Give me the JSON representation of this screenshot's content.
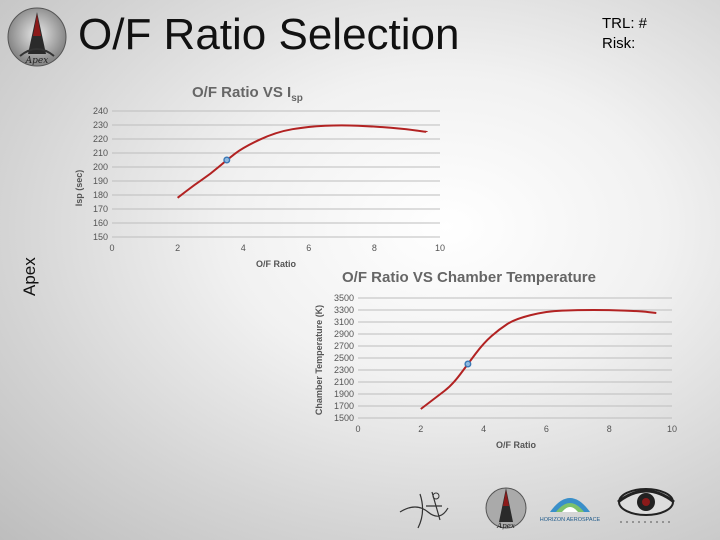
{
  "header": {
    "title": "O/F Ratio Selection",
    "trl_label": "TRL: #",
    "risk_label": "Risk:",
    "side_label": "Apex"
  },
  "logos": {
    "top_logo_text": "Apex",
    "bottom_logo_text": "Apex",
    "horizon_text": "HORIZON AEROSPACE"
  },
  "chart_data": [
    {
      "type": "line",
      "title": "O/F Ratio VS I",
      "title_sub": "sp",
      "xlabel": "O/F Ratio",
      "ylabel": "Isp (sec)",
      "xlim": [
        0,
        10
      ],
      "ylim": [
        150,
        240
      ],
      "xticks": [
        0,
        2,
        4,
        6,
        8,
        10
      ],
      "yticks": [
        150,
        160,
        170,
        180,
        190,
        200,
        210,
        220,
        230,
        240
      ],
      "grid": true,
      "series": [
        {
          "x": [
            2.0,
            2.5,
            3.0,
            3.5,
            4.0,
            5.0,
            6.0,
            7.0,
            8.0,
            9.0,
            9.6
          ],
          "y": [
            178,
            187,
            195,
            205,
            214,
            225,
            229,
            230,
            229,
            227,
            225
          ],
          "color": "#b22222"
        }
      ],
      "marker": {
        "x": 3.5,
        "y": 205,
        "color": "#3a78b5"
      }
    },
    {
      "type": "line",
      "title": "O/F Ratio VS Chamber Temperature",
      "xlabel": "O/F Ratio",
      "ylabel": "Chamber Temperature (K)",
      "xlim": [
        0,
        10
      ],
      "ylim": [
        1500,
        3500
      ],
      "xticks": [
        0,
        2,
        4,
        6,
        8,
        10
      ],
      "yticks": [
        1500,
        1700,
        1900,
        2100,
        2300,
        2500,
        2700,
        2900,
        3100,
        3300,
        3500
      ],
      "grid": true,
      "series": [
        {
          "x": [
            2.0,
            2.5,
            3.0,
            3.5,
            4.0,
            4.5,
            5.0,
            6.0,
            7.0,
            8.0,
            9.0,
            9.5
          ],
          "y": [
            1650,
            1850,
            2050,
            2400,
            2750,
            2980,
            3150,
            3280,
            3300,
            3300,
            3280,
            3250
          ],
          "color": "#b22222"
        }
      ],
      "marker": {
        "x": 3.5,
        "y": 2400,
        "color": "#3a78b5"
      }
    }
  ]
}
